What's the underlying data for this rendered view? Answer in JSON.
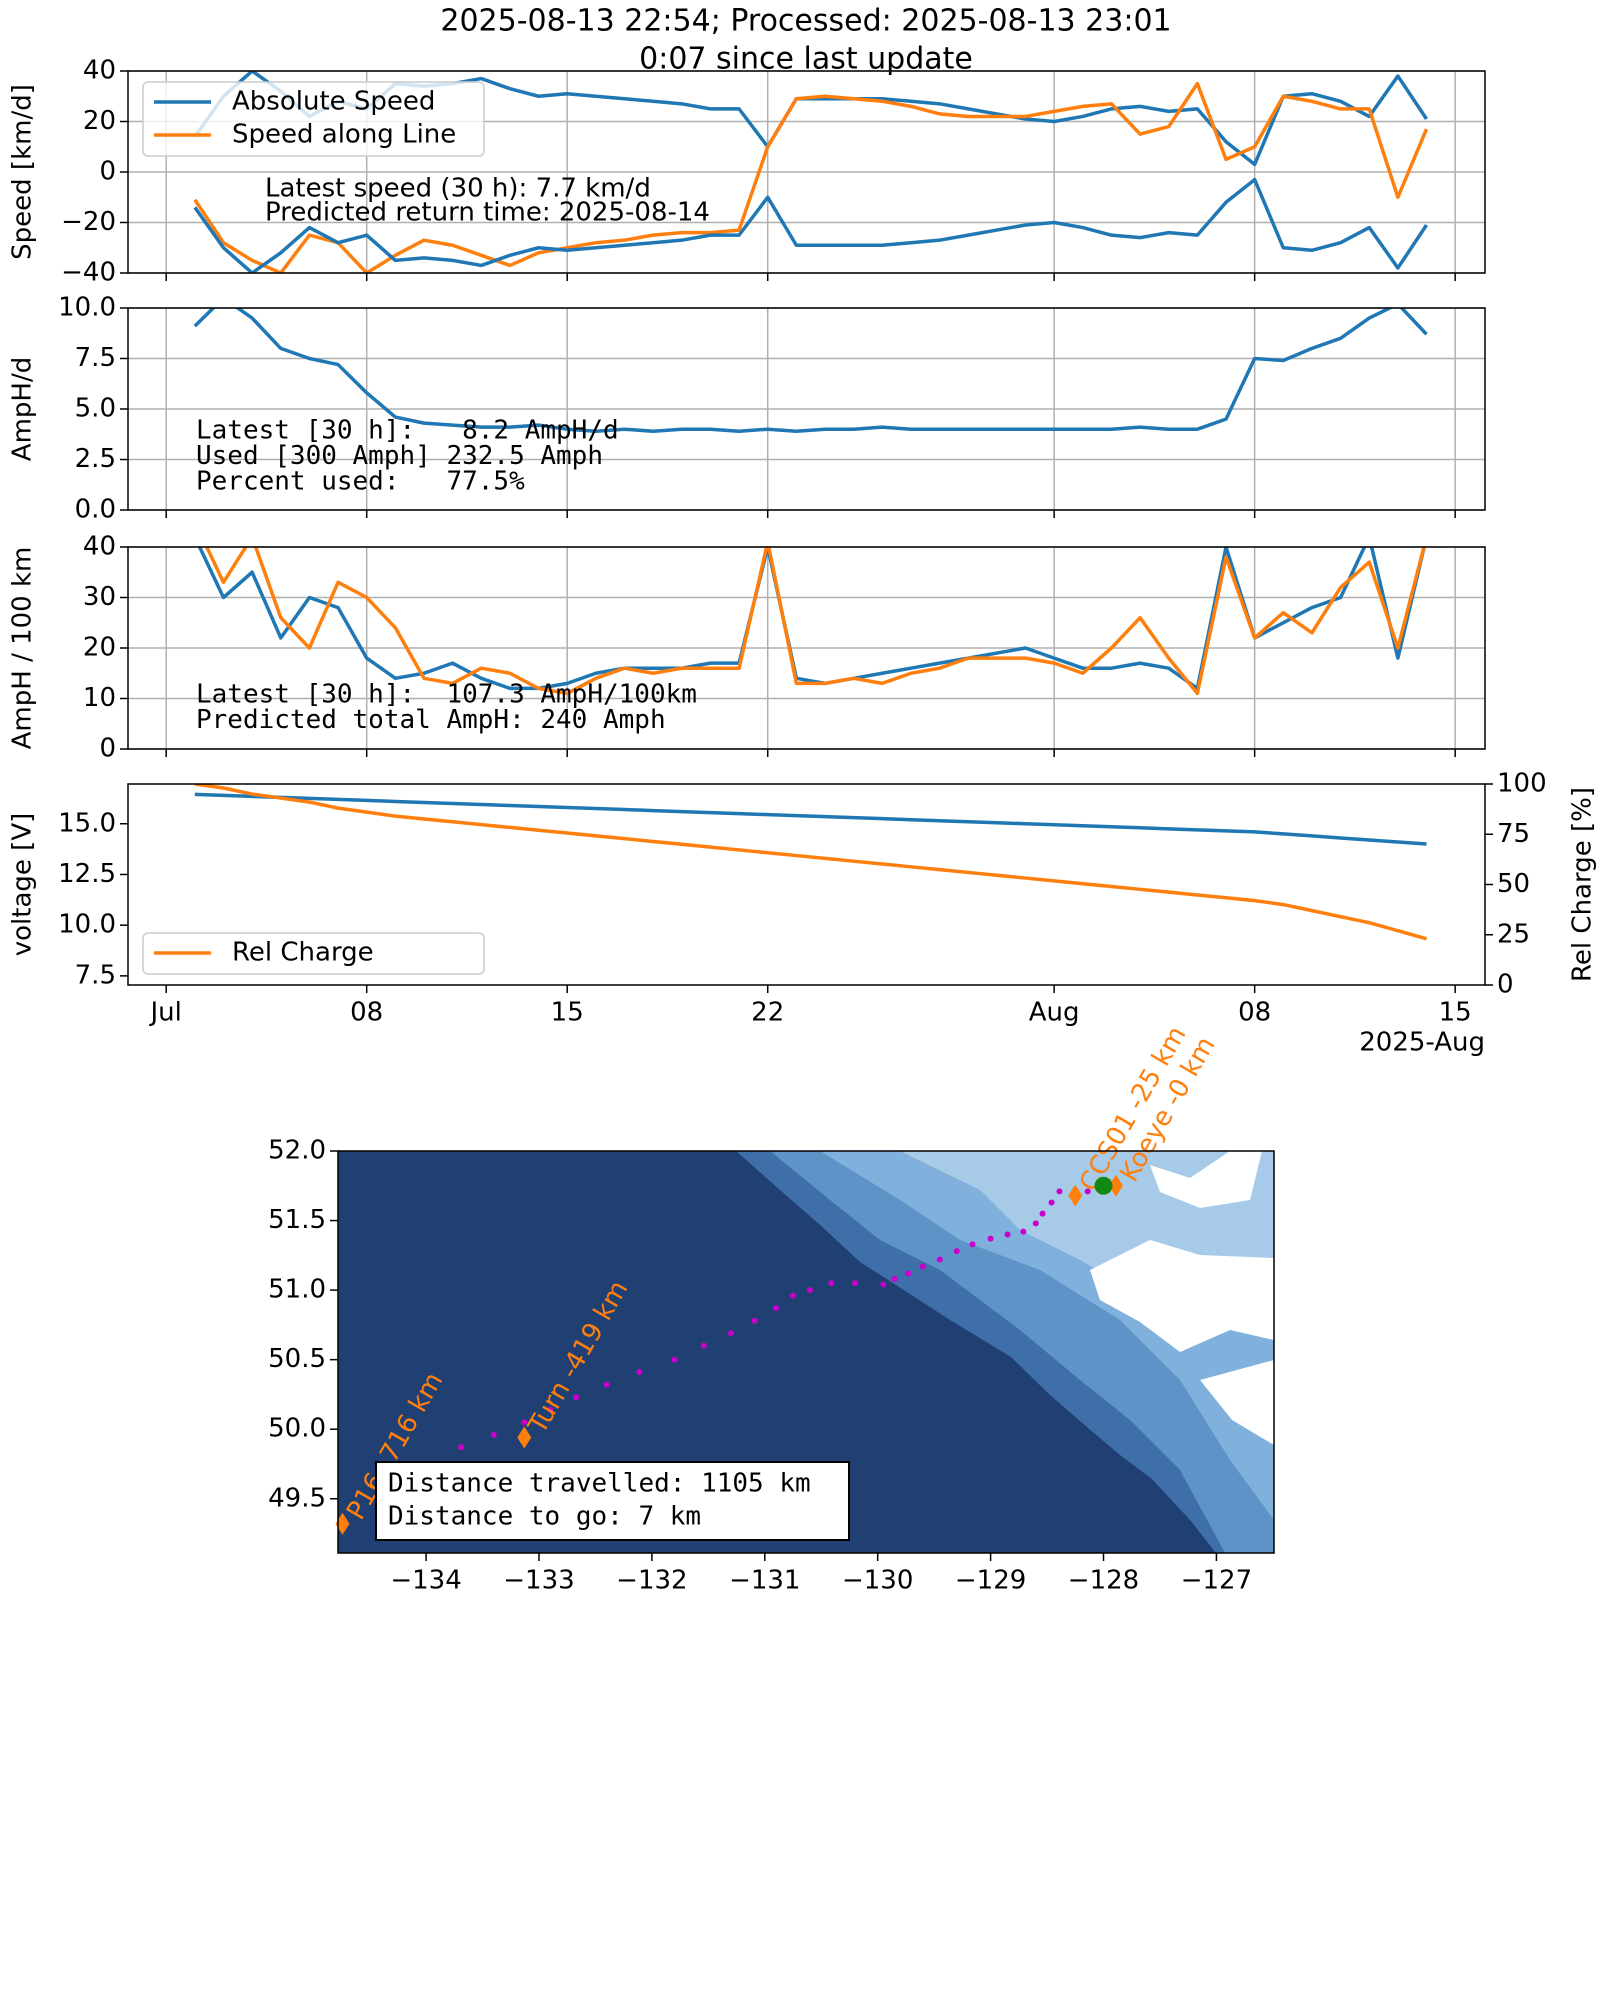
{
  "chart_data": [
    {
      "type": "line",
      "title": "2025-08-13 22:54; Processed: 2025-08-13 23:01",
      "subtitle": "0:07 since last update",
      "ylabel": "Speed [km/d]",
      "x": [
        "2025-07-02",
        "2025-07-03",
        "2025-07-04",
        "2025-07-05",
        "2025-07-06",
        "2025-07-07",
        "2025-07-08",
        "2025-07-09",
        "2025-07-10",
        "2025-07-11",
        "2025-07-12",
        "2025-07-13",
        "2025-07-14",
        "2025-07-15",
        "2025-07-16",
        "2025-07-17",
        "2025-07-18",
        "2025-07-19",
        "2025-07-20",
        "2025-07-21",
        "2025-07-22",
        "2025-07-23",
        "2025-07-24",
        "2025-07-25",
        "2025-07-26",
        "2025-07-27",
        "2025-07-28",
        "2025-07-29",
        "2025-07-30",
        "2025-07-31",
        "2025-08-01",
        "2025-08-02",
        "2025-08-03",
        "2025-08-04",
        "2025-08-05",
        "2025-08-06",
        "2025-08-07",
        "2025-08-08",
        "2025-08-09",
        "2025-08-10",
        "2025-08-11",
        "2025-08-12",
        "2025-08-13",
        "2025-08-14"
      ],
      "series": [
        {
          "name": "Absolute Speed",
          "color": "#1f77b4",
          "values": [
            14,
            30,
            40,
            32,
            22,
            28,
            25,
            35,
            34,
            35,
            37,
            33,
            30,
            31,
            30,
            29,
            28,
            27,
            25,
            25,
            10,
            29,
            29,
            29,
            29,
            28,
            27,
            25,
            23,
            21,
            20,
            22,
            25,
            26,
            24,
            25,
            12,
            3,
            30,
            31,
            28,
            22,
            38,
            21
          ]
        },
        {
          "name": "Speed along Line",
          "color": "#ff7f0e",
          "values": [
            -11,
            -28,
            -35,
            -40,
            -25,
            -28,
            -40,
            -33,
            -27,
            -29,
            -33,
            -37,
            -32,
            -30,
            -28,
            -27,
            -25,
            -24,
            -24,
            -23,
            10,
            29,
            30,
            29,
            28,
            26,
            23,
            22,
            22,
            22,
            24,
            26,
            27,
            15,
            18,
            35,
            5,
            10,
            30,
            28,
            25,
            25,
            -10,
            17
          ]
        },
        {
          "color": "#1f77b4",
          "values": [
            -14,
            -30,
            -40,
            -32,
            -22,
            -28,
            -25,
            -35,
            -34,
            -35,
            -37,
            -33,
            -30,
            -31,
            -30,
            -29,
            -28,
            -27,
            -25,
            -25,
            -10,
            -29,
            -29,
            -29,
            -29,
            -28,
            -27,
            -25,
            -23,
            -21,
            -20,
            -22,
            -25,
            -26,
            -24,
            -25,
            -12,
            -3,
            -30,
            -31,
            -28,
            -22,
            -38,
            -21
          ]
        }
      ],
      "ylim": [
        -40,
        40
      ],
      "yticks": [
        {
          "value": -40,
          "label": "−40"
        },
        {
          "value": -20,
          "label": "−20"
        },
        0,
        20,
        40
      ],
      "grid": true,
      "legend": "upper left",
      "annotation_font": "sans-serif",
      "annotations": [
        "Latest speed (30 h): 7.7 km/d",
        "Predicted return time: 2025-08-14"
      ]
    },
    {
      "type": "line",
      "ylabel": "AmpH/d",
      "x": [
        "2025-07-02",
        "2025-07-03",
        "2025-07-04",
        "2025-07-05",
        "2025-07-06",
        "2025-07-07",
        "2025-07-08",
        "2025-07-09",
        "2025-07-10",
        "2025-07-11",
        "2025-07-12",
        "2025-07-13",
        "2025-07-14",
        "2025-07-15",
        "2025-07-16",
        "2025-07-17",
        "2025-07-18",
        "2025-07-19",
        "2025-07-20",
        "2025-07-21",
        "2025-07-22",
        "2025-07-23",
        "2025-07-24",
        "2025-07-25",
        "2025-07-26",
        "2025-07-27",
        "2025-07-28",
        "2025-07-29",
        "2025-07-30",
        "2025-07-31",
        "2025-08-01",
        "2025-08-02",
        "2025-08-03",
        "2025-08-04",
        "2025-08-05",
        "2025-08-06",
        "2025-08-07",
        "2025-08-08",
        "2025-08-09",
        "2025-08-10",
        "2025-08-11",
        "2025-08-12",
        "2025-08-13",
        "2025-08-14"
      ],
      "series": [
        {
          "color": "#1f77b4",
          "values": [
            9.1,
            10.5,
            9.5,
            8.0,
            7.5,
            7.2,
            5.8,
            4.6,
            4.3,
            4.2,
            4.1,
            4.1,
            4.2,
            4.0,
            3.9,
            4.0,
            3.9,
            4.0,
            4.0,
            3.9,
            4.0,
            3.9,
            4.0,
            4.0,
            4.1,
            4.0,
            4.0,
            4.0,
            4.0,
            4.0,
            4.0,
            4.0,
            4.0,
            4.1,
            4.0,
            4.0,
            4.5,
            7.5,
            7.4,
            8.0,
            8.5,
            9.5,
            10.2,
            8.7
          ]
        }
      ],
      "ylim": [
        0,
        10
      ],
      "yticks": [
        {
          "value": 0,
          "label": "0.0"
        },
        2.5,
        {
          "value": 5,
          "label": "5.0"
        },
        7.5,
        {
          "value": 10,
          "label": "10.0"
        }
      ],
      "grid": true,
      "annotation_font": "monospace",
      "annotations": [
        "Latest [30 h]:   8.2 AmpH/d",
        "Used [300 Amph] 232.5 Amph",
        "Percent used:   77.5%"
      ]
    },
    {
      "type": "line",
      "ylabel": "AmpH / 100 km",
      "x": [
        "2025-07-02",
        "2025-07-03",
        "2025-07-04",
        "2025-07-05",
        "2025-07-06",
        "2025-07-07",
        "2025-07-08",
        "2025-07-09",
        "2025-07-10",
        "2025-07-11",
        "2025-07-12",
        "2025-07-13",
        "2025-07-14",
        "2025-07-15",
        "2025-07-16",
        "2025-07-17",
        "2025-07-18",
        "2025-07-19",
        "2025-07-20",
        "2025-07-21",
        "2025-07-22",
        "2025-07-23",
        "2025-07-24",
        "2025-07-25",
        "2025-07-26",
        "2025-07-27",
        "2025-07-28",
        "2025-07-29",
        "2025-07-30",
        "2025-07-31",
        "2025-08-01",
        "2025-08-02",
        "2025-08-03",
        "2025-08-04",
        "2025-08-05",
        "2025-08-06",
        "2025-08-07",
        "2025-08-08",
        "2025-08-09",
        "2025-08-10",
        "2025-08-11",
        "2025-08-12",
        "2025-08-13",
        "2025-08-14"
      ],
      "series": [
        {
          "color": "#1f77b4",
          "values": [
            42,
            30,
            35,
            22,
            30,
            28,
            18,
            14,
            15,
            17,
            14,
            12,
            12,
            13,
            15,
            16,
            16,
            16,
            17,
            17,
            40,
            14,
            13,
            14,
            15,
            16,
            17,
            18,
            19,
            20,
            18,
            16,
            16,
            17,
            16,
            12,
            40,
            22,
            25,
            28,
            30,
            42,
            18,
            42
          ]
        },
        {
          "color": "#ff7f0e",
          "values": [
            45,
            33,
            42,
            26,
            20,
            33,
            30,
            24,
            14,
            13,
            16,
            15,
            12,
            11,
            14,
            16,
            15,
            16,
            16,
            16,
            41,
            13,
            13,
            14,
            13,
            15,
            16,
            18,
            18,
            18,
            17,
            15,
            20,
            26,
            18,
            11,
            38,
            22,
            27,
            23,
            32,
            37,
            20,
            42
          ]
        }
      ],
      "ylim": [
        0,
        40
      ],
      "yticks": [
        0,
        10,
        20,
        30,
        40
      ],
      "grid": true,
      "annotation_font": "monospace",
      "annotations": [
        "Latest [30 h]:  107.3 AmpH/100km",
        "Predicted total AmpH: 240 Amph"
      ]
    },
    {
      "type": "line",
      "ylabel": "voltage [V]",
      "y2label": "Rel Charge [%]",
      "x": [
        "2025-07-02",
        "2025-07-03",
        "2025-07-04",
        "2025-07-05",
        "2025-07-06",
        "2025-07-07",
        "2025-07-08",
        "2025-07-09",
        "2025-07-10",
        "2025-07-11",
        "2025-07-12",
        "2025-07-13",
        "2025-07-14",
        "2025-07-15",
        "2025-07-16",
        "2025-07-17",
        "2025-07-18",
        "2025-07-19",
        "2025-07-20",
        "2025-07-21",
        "2025-07-22",
        "2025-07-23",
        "2025-07-24",
        "2025-07-25",
        "2025-07-26",
        "2025-07-27",
        "2025-07-28",
        "2025-07-29",
        "2025-07-30",
        "2025-07-31",
        "2025-08-01",
        "2025-08-02",
        "2025-08-03",
        "2025-08-04",
        "2025-08-05",
        "2025-08-06",
        "2025-08-07",
        "2025-08-08",
        "2025-08-09",
        "2025-08-10",
        "2025-08-11",
        "2025-08-12",
        "2025-08-13",
        "2025-08-14"
      ],
      "series": [
        {
          "color": "#1f77b4",
          "values": [
            16.45,
            16.4,
            16.35,
            16.3,
            16.25,
            16.2,
            16.15,
            16.1,
            16.05,
            16.0,
            15.95,
            15.9,
            15.85,
            15.8,
            15.75,
            15.7,
            15.65,
            15.6,
            15.55,
            15.5,
            15.45,
            15.4,
            15.35,
            15.3,
            15.25,
            15.2,
            15.15,
            15.1,
            15.05,
            15.0,
            14.95,
            14.9,
            14.85,
            14.8,
            14.75,
            14.7,
            14.65,
            14.6,
            14.5,
            14.4,
            14.3,
            14.2,
            14.1,
            14.0
          ]
        },
        {
          "name": "Rel Charge",
          "color": "#ff7f0e",
          "axis": "y2",
          "values": [
            100,
            98,
            95,
            93,
            91,
            88,
            86,
            84,
            82.6,
            81.2,
            79.8,
            78.4,
            77,
            75.6,
            74.2,
            72.8,
            71.4,
            70,
            68.6,
            67.2,
            65.8,
            64.4,
            63,
            61.6,
            60.2,
            58.8,
            57.4,
            56,
            54.6,
            53.2,
            51.8,
            50.4,
            49,
            47.6,
            46.2,
            44.8,
            43.4,
            42,
            40,
            37,
            34,
            31,
            27,
            23
          ]
        }
      ],
      "ylim": [
        7.05,
        16.96
      ],
      "yticks": [
        7.5,
        {
          "value": 10,
          "label": "10.0"
        },
        12.5,
        {
          "value": 15,
          "label": "15.0"
        }
      ],
      "y2lim": [
        0,
        100
      ],
      "y2ticks": [
        0,
        25,
        50,
        75,
        100
      ],
      "grid": false,
      "legend": "lower left",
      "xlim": [
        "2025-06-29T16:00:00Z",
        "2025-08-16T01:00:00Z"
      ],
      "xticks": [
        {
          "value": "2025-07-01",
          "label": "Jul"
        },
        {
          "value": "2025-07-08",
          "label": "08"
        },
        {
          "value": "2025-07-15",
          "label": "15"
        },
        {
          "value": "2025-07-22",
          "label": "22"
        },
        {
          "value": "2025-08-01",
          "label": "Aug"
        },
        {
          "value": "2025-08-08",
          "label": "08"
        },
        {
          "value": "2025-08-15",
          "label": "15"
        }
      ],
      "x_offset_label": "2025-Aug"
    },
    {
      "type": "map",
      "xlim": [
        -134.78,
        -126.49
      ],
      "ylim": [
        49.11,
        52.0
      ],
      "xticks": [
        {
          "value": -134,
          "label": "−134"
        },
        {
          "value": -133,
          "label": "−133"
        },
        {
          "value": -132,
          "label": "−132"
        },
        {
          "value": -131,
          "label": "−131"
        },
        {
          "value": -130,
          "label": "−130"
        },
        {
          "value": -129,
          "label": "−129"
        },
        {
          "value": -128,
          "label": "−128"
        },
        {
          "value": -127,
          "label": "−127"
        }
      ],
      "yticks": [
        49.5,
        {
          "value": 50,
          "label": "50.0"
        },
        50.5,
        {
          "value": 51,
          "label": "51.0"
        },
        51.5,
        {
          "value": 52,
          "label": "52.0"
        }
      ],
      "track": {
        "color": "#cc00cc",
        "lon": [
          -134.2,
          -133.69,
          -133.4,
          -133.13,
          -132.9,
          -132.67,
          -132.4,
          -132.11,
          -131.8,
          -131.54,
          -131.3,
          -131.09,
          -130.9,
          -130.75,
          -130.6,
          -130.41,
          -130.2,
          -129.95,
          -129.85,
          -129.73,
          -129.6,
          -129.45,
          -129.3,
          -129.16,
          -129.0,
          -128.85,
          -128.71,
          -128.6,
          -128.54,
          -128.46,
          -128.39,
          -128.25,
          -128.14,
          -128.0
        ],
        "lat": [
          49.6,
          49.87,
          49.96,
          50.05,
          50.14,
          50.23,
          50.32,
          50.41,
          50.5,
          50.6,
          50.69,
          50.78,
          50.87,
          50.96,
          51.0,
          51.05,
          51.05,
          51.04,
          51.08,
          51.12,
          51.17,
          51.22,
          51.28,
          51.33,
          51.37,
          51.4,
          51.42,
          51.48,
          51.55,
          51.63,
          51.71,
          51.71,
          51.71,
          51.75
        ]
      },
      "waypoints": [
        {
          "name": "P16 -716 km",
          "lon": -134.74,
          "lat": 49.32
        },
        {
          "name": "Turn -419 km",
          "lon": -133.13,
          "lat": 49.94
        },
        {
          "name": "CCS01 -25 km",
          "lon": -128.25,
          "lat": 51.68
        },
        {
          "name": "Koeye -0 km",
          "lon": -127.89,
          "lat": 51.75
        }
      ],
      "waypoint_color": "#ff7f0e",
      "position": {
        "lon": -128.0,
        "lat": 51.75,
        "color": "#118811"
      },
      "textbox": [
        "Distance travelled: 1105 km",
        "Distance to go: 7 km"
      ]
    }
  ]
}
